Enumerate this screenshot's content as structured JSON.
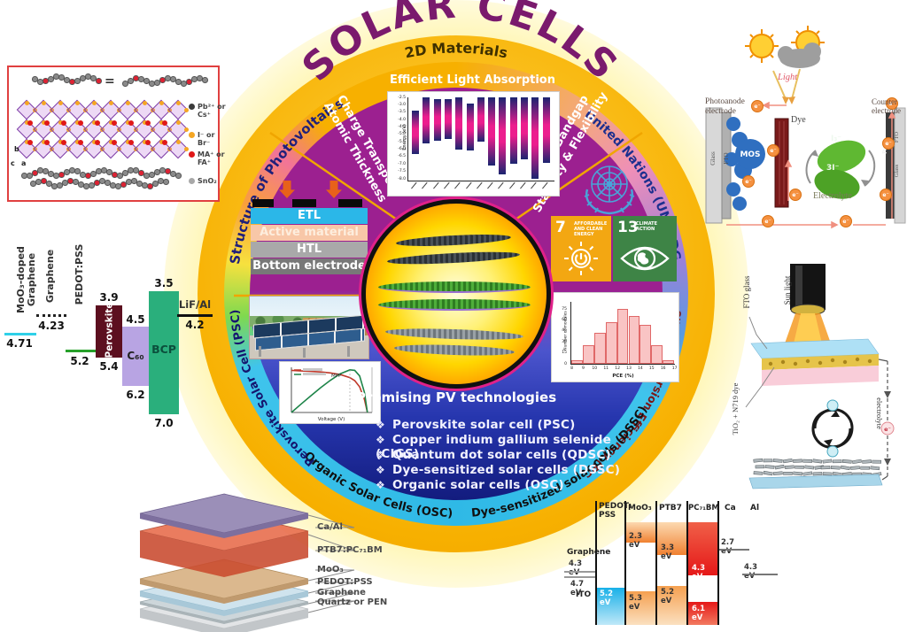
{
  "title": "SOLAR CELLS",
  "wheel": {
    "top_ring": "2D Materials",
    "ring_labels": {
      "structure": "Structure of Photovoltaics",
      "un_sdg": "United Nations (UN) SDG",
      "pce": "Power Conversion Efficiency (PCE)",
      "dssc": "Dye-sensitized solar cells (DSSC)",
      "osc": "Organic Solar Cells (OSC)",
      "psc": "Perovskite Solar Cell (PSC)"
    },
    "charge_label_1": "Charge Transport",
    "charge_label_2": "Atomic Thickness",
    "bandgap_label_1": "Tunable Bandgap",
    "bandgap_label_2": "Stability & Flexibility",
    "stack_layers": [
      "ETL",
      "Active material",
      "HTL",
      "Bottom electrode"
    ],
    "promising_title": "Promising PV technologies",
    "promising_items": [
      "Perovskite solar cell (PSC)",
      "Copper indium gallium selenide (CIGS)",
      "Quantum dot solar cells (QDSC)",
      "Dye-sensitized solar cells (DSSC)",
      "Organic solar cells (OSC)"
    ],
    "bullet": "❖",
    "sdg_tiles": [
      {
        "number": "7",
        "label": "AFFORDABLE AND CLEAN ENERGY",
        "color": "#F3A712"
      },
      {
        "number": "13",
        "label": "CLIMATE ACTION",
        "color": "#3E8446"
      }
    ]
  },
  "crystal": {
    "equals": "=",
    "legend": [
      {
        "marker": "#3a3a3a",
        "text": "Pb²⁺ or Cs⁺"
      },
      {
        "marker": "#f5a623",
        "text": "I⁻ or Br⁻"
      },
      {
        "marker": "#e01818",
        "text": "MA⁺ or FA⁺"
      },
      {
        "marker": "#a8a8a8",
        "text": "SnO₂"
      }
    ],
    "axis_b": "b",
    "axis_c": "c",
    "axis_a": "a"
  },
  "left_energy": {
    "mog_label": "MoO₃-doped Graphene",
    "mog_value": "4.71",
    "graphene_label": "Graphene",
    "graphene_value": "4.23",
    "pedot_label": "PEDOT:PSS",
    "pedot_value": "5.2",
    "perovskite_label": "Perovskite",
    "perovskite_top": "3.9",
    "perovskite_bottom": "5.4",
    "c60_label": "C₆₀",
    "c60_top": "4.5",
    "c60_bottom": "6.2",
    "bcp_label": "BCP",
    "bcp_top": "3.5",
    "bcp_bottom": "7.0",
    "lif_label": "LiF/Al",
    "lif_value": "4.2"
  },
  "osc_stack": {
    "labels": [
      "Ca/Al",
      "PTB7:PC₇₁BM",
      "MoO₃",
      "PEDOT:PSS",
      "Graphene",
      "Quartz or PEN"
    ]
  },
  "right_energy": {
    "headers": [
      "PEDOT: PSS",
      "MoO₃",
      "PTB7",
      "PC₇₁BM",
      "Ca",
      "Al"
    ],
    "graphene_label": "Graphene",
    "graphene_value": "4.3 eV",
    "ito_value": "4.7 eV",
    "ito_label": "ITO",
    "pedot_v": "5.2 eV",
    "moo3_top": "2.3 eV",
    "moo3_bottom": "5.3 eV",
    "ptb7_top": "3.3 eV",
    "ptb7_bottom": "5.2 eV",
    "pcbm_mid": "4.3 eV",
    "pcbm_bottom": "6.1 eV",
    "ca_v": "2.7 eV",
    "al_v": "4.3 eV"
  },
  "dssc_diagram": {
    "light": "Light",
    "photoanode": "Photoanode electrode",
    "counter": "Counter electrode",
    "glass_left": "Glass",
    "fto_left": "FTO",
    "mos": "MOS",
    "dye": "Dye",
    "i3": "I₃⁻",
    "i_minus": "3I⁻",
    "electrolyte": "Electrolyte",
    "pt": "Pt",
    "fto_right": "FTO",
    "glass_right": "Glass",
    "electron": "e⁻"
  },
  "cell_diagram": {
    "sun_light": "Sun light",
    "fto_glass": "FTO glass",
    "tio2_dye": "TiO₂ + N719 dye",
    "electrolyte": "electrolyte",
    "electron": "e⁻"
  },
  "chart_data": [
    {
      "id": "absorption",
      "type": "bar",
      "title": "Efficient Light Absorption",
      "ylabel": "Energy (eV)",
      "ylim": [
        -8.0,
        -2.5
      ],
      "yticks": [
        -2.5,
        -3.0,
        -3.5,
        -4.0,
        -4.5,
        -5.0,
        -5.5,
        -6.0,
        -6.5,
        -7.0,
        -7.5,
        -8.0
      ],
      "note": "floating HOMO-LUMO range bars; rotated x tick labels illegible in source",
      "ranges": [
        [
          -3.4,
          -6.3
        ],
        [
          -2.5,
          -5.6
        ],
        [
          -2.6,
          -5.4
        ],
        [
          -2.6,
          -5.3
        ],
        [
          -2.5,
          -6.0
        ],
        [
          -2.9,
          -6.1
        ],
        [
          -2.5,
          -5.5
        ],
        [
          -2.5,
          -7.1
        ],
        [
          -2.5,
          -7.7
        ],
        [
          -2.5,
          -7.0
        ],
        [
          -2.5,
          -6.7
        ],
        [
          -2.5,
          -8.0
        ],
        [
          -2.5,
          -6.9
        ]
      ]
    },
    {
      "id": "pce_histogram",
      "type": "bar",
      "xlabel": "PCE (%)",
      "ylabel": "Number of modules",
      "categories": [
        8,
        9,
        10,
        11,
        12,
        13,
        14,
        15,
        16
      ],
      "values": [
        5,
        25,
        42,
        57,
        75,
        65,
        53,
        25,
        5
      ],
      "xticks": [
        8,
        9,
        10,
        11,
        12,
        13,
        14,
        15,
        16,
        17
      ],
      "yticks": [
        0,
        15,
        30,
        45,
        60,
        75
      ],
      "ylim": [
        0,
        80
      ]
    },
    {
      "id": "jv_curve",
      "type": "line",
      "xlabel": "Voltage (V)",
      "annotation": "MPP",
      "note": "legend text illegible in source; red J-V curve (left axis), green power curve (right axis)",
      "series": [
        {
          "name": "current-density",
          "color": "#c0392b",
          "x": [
            0,
            0.1,
            0.2,
            0.3,
            0.4,
            0.5,
            0.6,
            0.65,
            0.7,
            0.75,
            0.78
          ],
          "y": [
            8.2,
            8.1,
            8.0,
            7.9,
            7.7,
            7.4,
            6.8,
            6.2,
            5.0,
            2.5,
            0
          ]
        },
        {
          "name": "power",
          "color": "#1e8449",
          "x": [
            0,
            0.1,
            0.2,
            0.3,
            0.4,
            0.5,
            0.6,
            0.65,
            0.7,
            0.75,
            0.78
          ],
          "y": [
            0,
            0.81,
            1.6,
            2.37,
            3.08,
            3.7,
            4.08,
            4.03,
            3.5,
            1.9,
            0
          ]
        }
      ]
    }
  ]
}
